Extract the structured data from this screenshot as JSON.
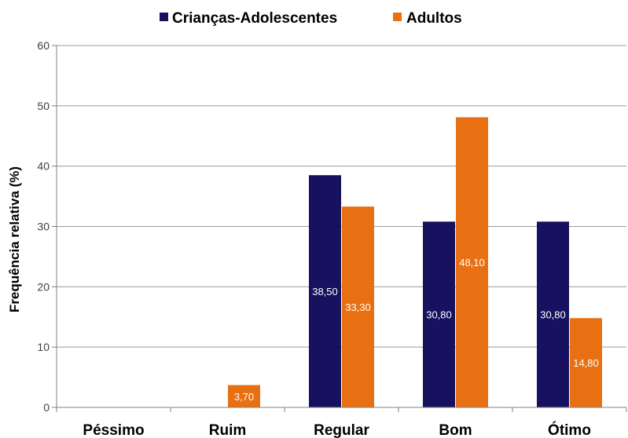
{
  "chart_data": {
    "type": "bar",
    "categories": [
      "Péssimo",
      "Ruim",
      "Regular",
      "Bom",
      "Ótimo"
    ],
    "series": [
      {
        "name": "Crianças-Adolescentes",
        "color": "#16125f",
        "values": [
          0,
          0,
          38.5,
          30.8,
          30.8
        ],
        "labels": [
          "",
          "",
          "38,50",
          "30,80",
          "30,80"
        ]
      },
      {
        "name": "Adultos",
        "color": "#e87012",
        "values": [
          0,
          3.7,
          33.3,
          48.1,
          14.8
        ],
        "labels": [
          "",
          "3,70",
          "33,30",
          "48,10",
          "14,80"
        ]
      }
    ],
    "title": "",
    "xlabel": "",
    "ylabel": "Frequência relativa (%)",
    "ylim": [
      0,
      60
    ],
    "yticks": [
      0,
      10,
      20,
      30,
      40,
      50,
      60
    ],
    "ytick_labels": [
      "0",
      "10",
      "20",
      "30",
      "40",
      "50",
      "60"
    ],
    "grid": true,
    "legend_position": "top"
  }
}
